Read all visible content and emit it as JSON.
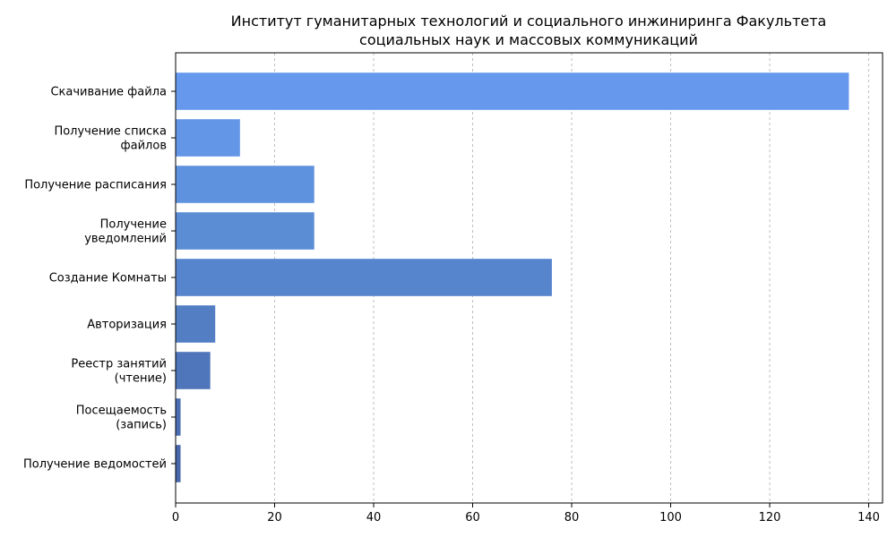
{
  "chart_data": {
    "type": "bar",
    "orientation": "horizontal",
    "title": "Институт гуманитарных технологий и социального инжиниринга Факультета социальных наук и массовых коммуникаций",
    "title_lines": [
      "Институт гуманитарных технологий и социального инжиниринга Факультета",
      "социальных наук и массовых коммуникаций"
    ],
    "xlabel": "",
    "ylabel": "",
    "xlim": [
      0,
      142.8
    ],
    "xticks": [
      0,
      20,
      40,
      60,
      80,
      100,
      120,
      140
    ],
    "grid": "vertical-dashed",
    "categories": [
      "Скачивание файла",
      "Получение списка файлов",
      "Получение расписания",
      "Получение уведомлений",
      "Создание Комнаты",
      "Авторизация",
      "Реестр занятий (чтение)",
      "Посещаемость (запись)",
      "Получение ведомостей"
    ],
    "category_lines": [
      [
        "Скачивание файла"
      ],
      [
        "Получение списка",
        "файлов"
      ],
      [
        "Получение расписания"
      ],
      [
        "Получение",
        "уведомлений"
      ],
      [
        "Создание Комнаты"
      ],
      [
        "Авторизация"
      ],
      [
        "Реестр занятий",
        "(чтение)"
      ],
      [
        "Посещаемость",
        "(запись)"
      ],
      [
        "Получение ведомостей"
      ]
    ],
    "values": [
      136,
      13,
      28,
      28,
      76,
      8,
      7,
      1,
      1
    ],
    "colors": [
      "#6699ee",
      "#6396e6",
      "#5f92de",
      "#5b8dd5",
      "#5785cd",
      "#537ec4",
      "#4f76bb",
      "#4b6eb2",
      "#4767aa"
    ]
  }
}
